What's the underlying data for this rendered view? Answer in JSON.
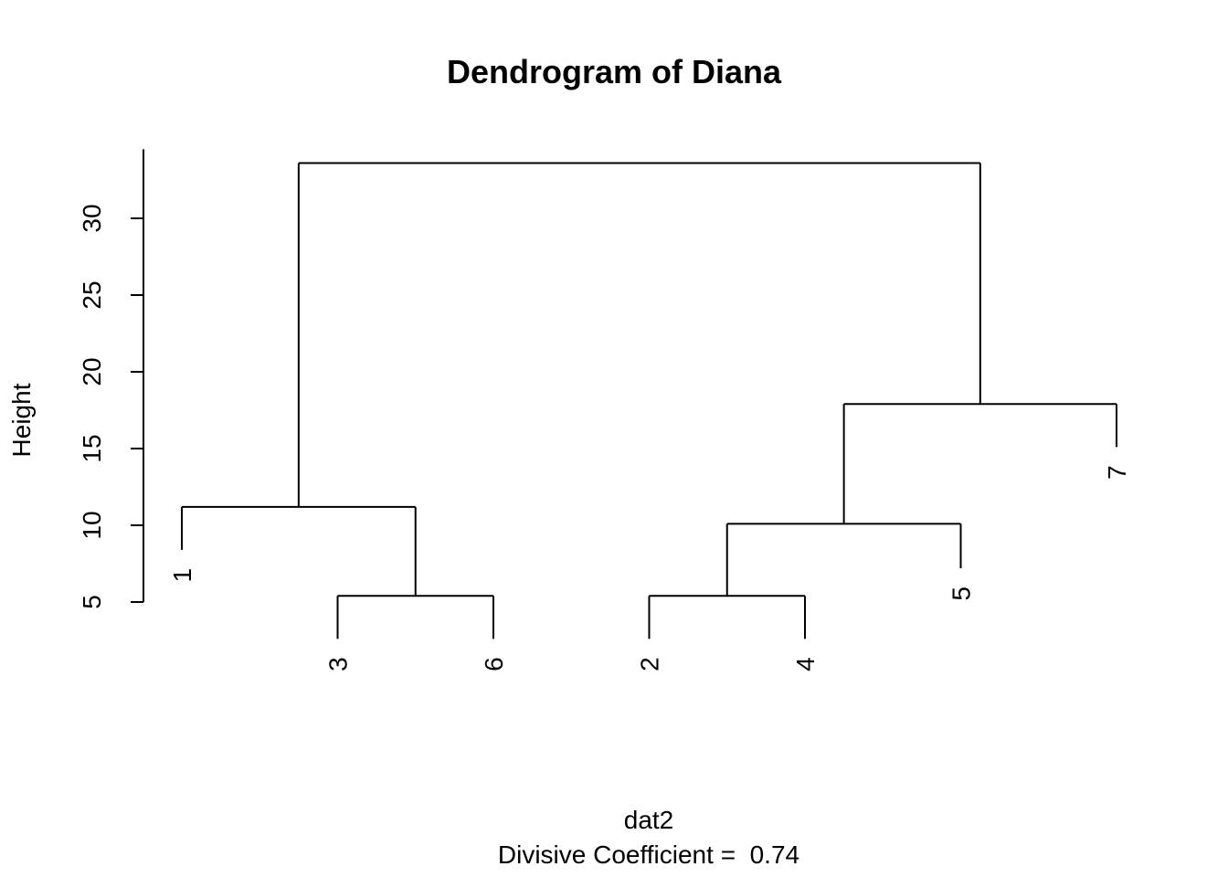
{
  "chart_data": {
    "type": "dendrogram",
    "title": "Dendrogram of Diana",
    "xlabel": "dat2",
    "subtitle": "Divisive Coefficient =  0.74",
    "ylabel": "Height",
    "ylim": [
      5,
      34
    ],
    "yticks": [
      5,
      10,
      15,
      20,
      25,
      30
    ],
    "leaf_order": [
      "1",
      "3",
      "6",
      "2",
      "4",
      "5",
      "7"
    ],
    "merges": [
      {
        "left": "3",
        "right": "6",
        "height": 5.4
      },
      {
        "left": "2",
        "right": "4",
        "height": 5.4
      },
      {
        "left": "2-4",
        "right": "5",
        "height": 10.1
      },
      {
        "left": "1",
        "right": "3-6",
        "height": 11.2
      },
      {
        "left": "2-4-5",
        "right": "7",
        "height": 17.9
      },
      {
        "left": "1-3-6",
        "right": "2-4-5-7",
        "height": 33.6
      }
    ],
    "leaf_label_heights": {
      "1": 8.4,
      "3": 2.6,
      "6": 2.6,
      "2": 2.6,
      "4": 2.6,
      "5": 7.2,
      "7": 15.1
    }
  }
}
